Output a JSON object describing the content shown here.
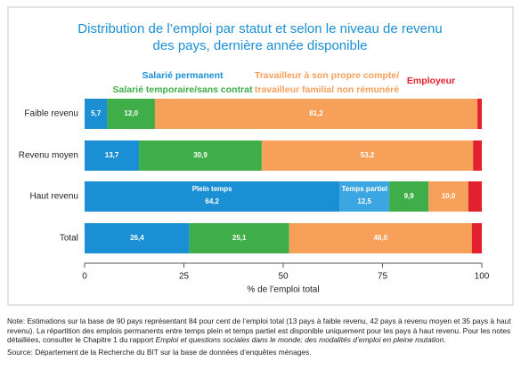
{
  "chart_data": {
    "type": "stacked-barh",
    "title": [
      "Distribution de l’emploi par statut et selon le niveau de revenu",
      "des pays, dernière année disponible"
    ],
    "categories": [
      "Faible revenu",
      "Revenu moyen",
      "Haut revenu",
      "Total"
    ],
    "series": [
      {
        "name": "Salarié permanent",
        "color": "#1a8fd4",
        "legend": true,
        "values": [
          5.7,
          13.7,
          null,
          26.4
        ],
        "value_labels": [
          "5,7",
          "13,7",
          null,
          "26,4"
        ]
      },
      {
        "name": "Plein temps",
        "color": "#1a8fd4",
        "legend": false,
        "values": [
          null,
          null,
          64.2,
          null
        ],
        "value_labels": [
          null,
          null,
          "64,2",
          null
        ]
      },
      {
        "name": "Temps partiel",
        "color": "#3ba6e2",
        "legend": false,
        "values": [
          null,
          null,
          12.5,
          null
        ],
        "value_labels": [
          null,
          null,
          "12,5",
          null
        ]
      },
      {
        "name": "Salarié temporaire/sans contrat",
        "color": "#3fae49",
        "legend": true,
        "values": [
          12.0,
          30.9,
          9.9,
          25.1
        ],
        "value_labels": [
          "12,0",
          "30,9",
          "9,9",
          "25,1"
        ]
      },
      {
        "name": "Travailleur à son propre compte/\ntravailleur familial non rémunéré",
        "color": "#f6a05a",
        "legend": true,
        "values": [
          81.2,
          53.2,
          10.0,
          46.0
        ],
        "value_labels": [
          "81,2",
          "53,2",
          "10,0",
          "46,0"
        ]
      },
      {
        "name": "Employeur",
        "color": "#e3202e",
        "legend": true,
        "values": [
          1.1,
          2.2,
          3.4,
          2.5
        ],
        "value_labels": [
          null,
          null,
          null,
          null
        ]
      }
    ],
    "xlim": [
      0,
      100
    ],
    "xticks": [
      0,
      25,
      50,
      75,
      100
    ],
    "xlabel": "% de l’emploi total"
  },
  "notes": {
    "note": [
      "Note: Estimations sur la base de 90 pays représentant 84 pour cent de l’emploi total (13 pays à faible revenu, 42 pays à revenu moyen et 35 pays à haut revenu). La répartition des emplois permanents entre temps plein et temps partiel est disponible uniquement pour les pays à haut revenu. Pour les notes détaillées, consulter le Chapitre 1 du rapport ",
      "Emploi et questions sociales dans le monde: des modalités d’emploi en pleine mutation",
      "."
    ],
    "source": "Source: Département de la Recherche du BIT sur la base de données d’enquêtes ménages."
  }
}
